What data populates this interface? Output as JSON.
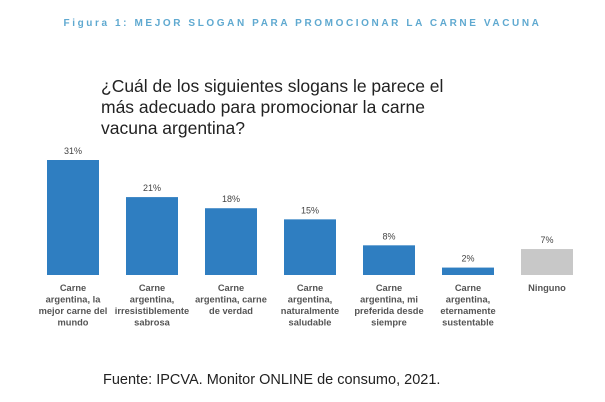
{
  "figure_title": "Figura 1: MEJOR SLOGAN PARA PROMOCIONAR LA CARNE VACUNA",
  "question": "¿Cuál de los siguientes slogans le parece el más adecuado para promocionar la carne vacuna argentina?",
  "source": "Fuente: IPCVA. Monitor ONLINE de consumo, 2021.",
  "colors": {
    "bar": "#2f7ec1",
    "bar_none": "#c8c8c8",
    "title": "#5fa9d0"
  },
  "chart_data": {
    "type": "bar",
    "categories": [
      [
        "Carne",
        "argentina, la",
        "mejor carne del",
        "mundo"
      ],
      [
        "Carne",
        "argentina,",
        "irresistiblemente",
        "sabrosa"
      ],
      [
        "Carne",
        "argentina, carne",
        "de verdad"
      ],
      [
        "Carne",
        "argentina,",
        "naturalmente",
        "saludable"
      ],
      [
        "Carne",
        "argentina, mi",
        "preferida desde",
        "siempre"
      ],
      [
        "Carne",
        "argentina,",
        "eternamente",
        "sustentable"
      ],
      [
        "Ninguno"
      ]
    ],
    "values": [
      31,
      21,
      18,
      15,
      8,
      2,
      7
    ],
    "data_labels": [
      "31%",
      "21%",
      "18%",
      "15%",
      "8%",
      "2%",
      "7%"
    ],
    "highlight": [
      true,
      true,
      true,
      true,
      true,
      true,
      false
    ],
    "ylim": [
      0,
      31
    ]
  }
}
